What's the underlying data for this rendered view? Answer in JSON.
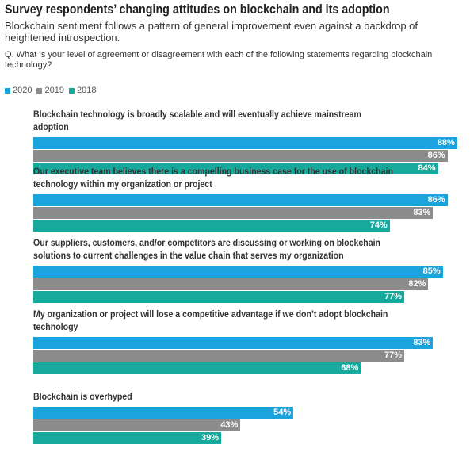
{
  "chart_data": {
    "type": "bar",
    "orientation": "horizontal",
    "title": "Survey respondents’ changing attitudes on blockchain and its adoption",
    "subtitle": "Blockchain sentiment follows a pattern of general improvement even against a backdrop of heightened introspection.",
    "question": "Q. What is your level of agreement or disagreement with each of the following statements regarding blockchain technology?",
    "categories": [
      "Blockchain technology is broadly scalable and will eventually achieve mainstream adoption",
      "Our executive team believes there is a compelling business case for the use of blockchain technology within my organization or project",
      "Our suppliers, customers, and/or competitors are discussing or working on blockchain solutions to current challenges in the value chain that serves my organization",
      "My organization or project will lose a competitive advantage if we don’t adopt blockchain technology",
      "Blockchain is overhyped"
    ],
    "series": [
      {
        "name": "2020",
        "color": "#1ba3dd",
        "values": [
          88,
          86,
          85,
          83,
          54
        ],
        "value_labels": [
          "88%",
          "86%",
          "85%",
          "83%",
          "54%"
        ]
      },
      {
        "name": "2019",
        "color": "#8c8c8c",
        "values": [
          86,
          83,
          82,
          77,
          43
        ],
        "value_labels": [
          "86%",
          "83%",
          "82%",
          "77%",
          "43%"
        ]
      },
      {
        "name": "2018",
        "color": "#17a99b",
        "values": [
          84,
          74,
          77,
          68,
          39
        ],
        "value_labels": [
          "84%",
          "74%",
          "77%",
          "68%",
          "39%"
        ]
      }
    ],
    "xlim": [
      0,
      90
    ],
    "legend": "top-left"
  }
}
